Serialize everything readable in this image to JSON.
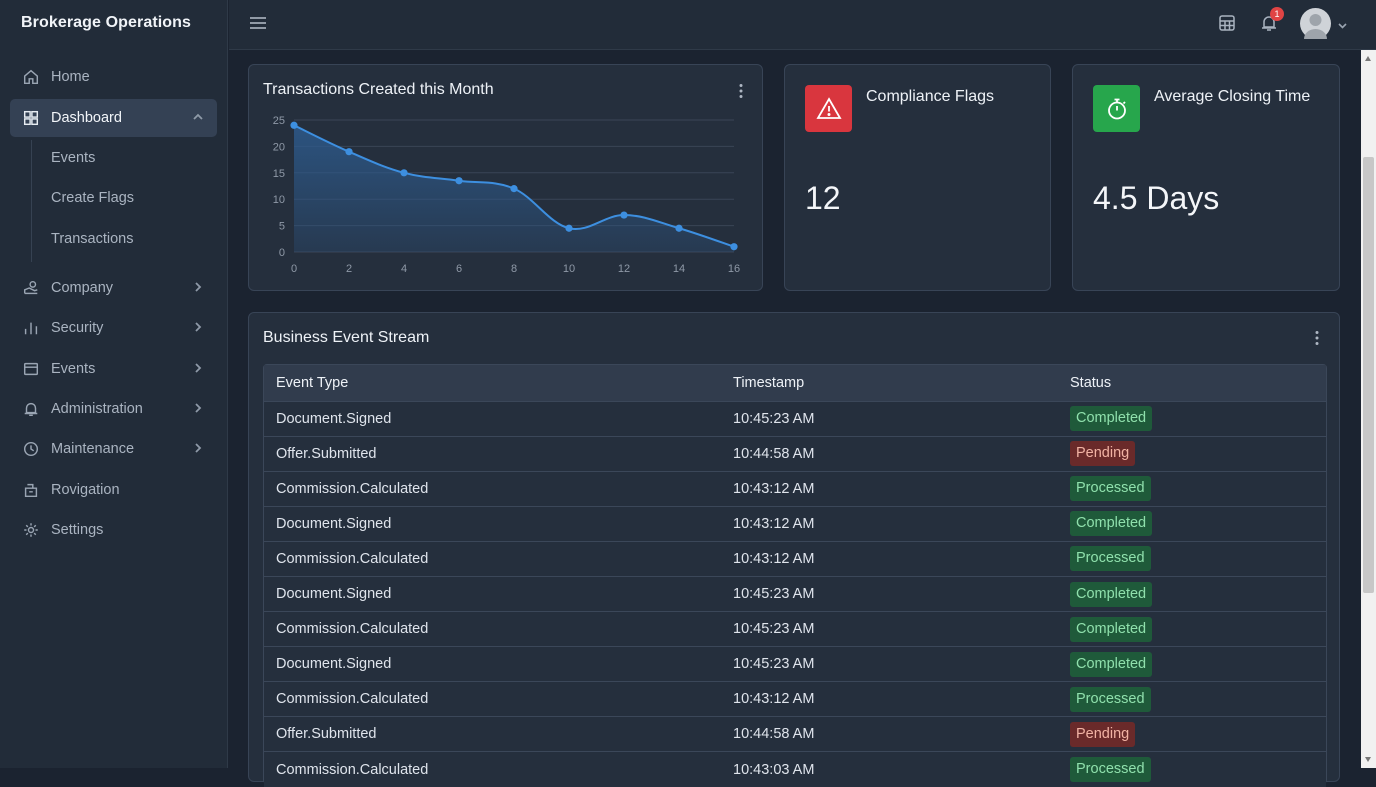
{
  "app": {
    "brand": "Brokerage Operations"
  },
  "sidebar": {
    "items": [
      {
        "label": "Home",
        "icon": "home-icon"
      },
      {
        "label": "Dashboard",
        "icon": "dashboard-grid-icon",
        "expanded": true
      },
      {
        "label": "Company",
        "icon": "company-icon"
      },
      {
        "label": "Security",
        "icon": "bar-chart-icon"
      },
      {
        "label": "Events",
        "icon": "card-icon"
      },
      {
        "label": "Administration",
        "icon": "bell-icon"
      },
      {
        "label": "Maintenance",
        "icon": "clock-icon"
      },
      {
        "label": "Rovigation",
        "icon": "navigation-icon"
      },
      {
        "label": "Settings",
        "icon": "gear-icon"
      }
    ],
    "dashboard_subitems": [
      "Events",
      "Create Flags",
      "Transactions"
    ]
  },
  "topbar": {
    "notification_count": "1"
  },
  "transactions_card": {
    "title": "Transactions Created this Month"
  },
  "chart_data": {
    "type": "area",
    "title": "Transactions Created this Month",
    "x": [
      0,
      2,
      4,
      6,
      8,
      10,
      12,
      14,
      16
    ],
    "series": [
      {
        "x": [
          0,
          2,
          4,
          6,
          8,
          10,
          12,
          14,
          16
        ],
        "values": [
          24,
          19,
          15,
          13.5,
          12,
          4.5,
          7,
          4.5,
          1
        ]
      }
    ],
    "xticks": [
      "0",
      "2",
      "4",
      "6",
      "8",
      "10",
      "12",
      "14",
      "16"
    ],
    "yticks": [
      "0",
      "5",
      "10",
      "15",
      "20",
      "25"
    ],
    "xlim": [
      0,
      16
    ],
    "ylim": [
      0,
      25
    ],
    "grid": true,
    "colors": {
      "line": "#3d8fe0",
      "fill": "#2d5a8c"
    }
  },
  "compliance_card": {
    "title": "Compliance Flags",
    "value": "12",
    "icon": "warning-triangle-icon",
    "color": "#d9363e"
  },
  "closing_card": {
    "title": "Average Closing Time",
    "value": "4.5 Days",
    "icon": "stopwatch-icon",
    "color": "#27a64c"
  },
  "event_stream": {
    "title": "Business Event Stream",
    "columns": [
      "Event Type",
      "Timestamp",
      "Status"
    ],
    "rows": [
      {
        "event": "Document.Signed",
        "time": "10:45:23 AM",
        "status": "Completed"
      },
      {
        "event": "Offer.Submitted",
        "time": "10:44:58 AM",
        "status": "Pending"
      },
      {
        "event": "Commission.Calculated",
        "time": "10:43:12 AM",
        "status": "Processed"
      },
      {
        "event": "Document.Signed",
        "time": "10:43:12 AM",
        "status": "Completed"
      },
      {
        "event": "Commission.Calculated",
        "time": "10:43:12 AM",
        "status": "Processed"
      },
      {
        "event": "Document.Signed",
        "time": "10:45:23 AM",
        "status": "Completed"
      },
      {
        "event": "Commission.Calculated",
        "time": "10:45:23 AM",
        "status": "Completed"
      },
      {
        "event": "Document.Signed",
        "time": "10:45:23 AM",
        "status": "Completed"
      },
      {
        "event": "Commission.Calculated",
        "time": "10:43:12 AM",
        "status": "Processed"
      },
      {
        "event": "Offer.Submitted",
        "time": "10:44:58 AM",
        "status": "Pending"
      },
      {
        "event": "Commission.Calculated",
        "time": "10:43:03 AM",
        "status": "Processed"
      }
    ],
    "status_colors": {
      "Completed": {
        "bg": "#1f5a3a",
        "fg": "#8fe0ac"
      },
      "Processed": {
        "bg": "#1f5a3a",
        "fg": "#8fe0ac"
      },
      "Pending": {
        "bg": "#6a2a2a",
        "fg": "#f2b3a4"
      }
    }
  }
}
